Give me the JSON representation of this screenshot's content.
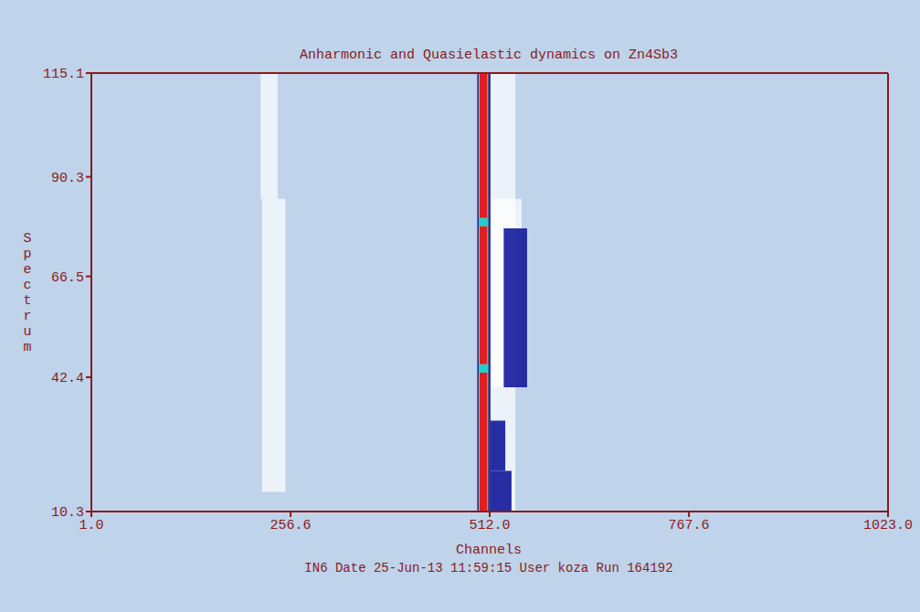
{
  "chart_data": {
    "type": "heatmap",
    "title": "Anharmonic and Quasielastic dynamics on Zn4Sb3",
    "x_label": "Channels",
    "y_label": "Spectrum",
    "annotations": [
      "IN6 Date 25-Jun-13 11:59:15 User koza Run 164192"
    ],
    "xlim": [
      1,
      1023
    ],
    "xticks": [
      {
        "value": 1,
        "label": "1.0"
      },
      256.6,
      {
        "value": 512,
        "label": "512.0"
      },
      767.6,
      {
        "value": 1023,
        "label": "1023.0"
      }
    ],
    "ylim": [
      10.3,
      115.1
    ],
    "yticks": [
      10.3,
      42.4,
      66.5,
      90.3,
      115.1
    ],
    "zlim": [
      0,
      100
    ],
    "cells": [
      {
        "x": [
          220,
          250
        ],
        "y": [
          15,
          85
        ],
        "value": 3
      },
      {
        "x": [
          218,
          240
        ],
        "y": [
          85,
          115.1
        ],
        "value": 5
      },
      {
        "x": [
          513,
          545
        ],
        "y": [
          10.3,
          115.1
        ],
        "value": 5
      },
      {
        "x": [
          513,
          553
        ],
        "y": [
          40,
          85
        ],
        "value": 5
      },
      {
        "x": [
          513,
          540
        ],
        "y": [
          10.3,
          20
        ],
        "value": 25
      },
      {
        "x": [
          513,
          532
        ],
        "y": [
          20,
          32
        ],
        "value": 25
      },
      {
        "x": [
          530,
          560
        ],
        "y": [
          40,
          78
        ],
        "value": 20
      },
      {
        "x": [
          496,
          513
        ],
        "y": [
          10.3,
          115.1
        ],
        "value": 20
      },
      {
        "x": [
          498,
          510
        ],
        "y": [
          10.3,
          115.1
        ],
        "value": 80
      },
      {
        "x": [
          498,
          510
        ],
        "y": [
          43.5,
          45.5
        ],
        "value": 55
      },
      {
        "x": [
          498,
          510
        ],
        "y": [
          78.5,
          80.5
        ],
        "value": 55
      },
      {
        "x": [
          499,
          509
        ],
        "y": [
          10.3,
          43.5
        ],
        "value": 95
      },
      {
        "x": [
          499,
          509
        ],
        "y": [
          45.5,
          78.5
        ],
        "value": 95
      },
      {
        "x": [
          499,
          509
        ],
        "y": [
          80.5,
          115.1
        ],
        "value": 95
      }
    ]
  }
}
